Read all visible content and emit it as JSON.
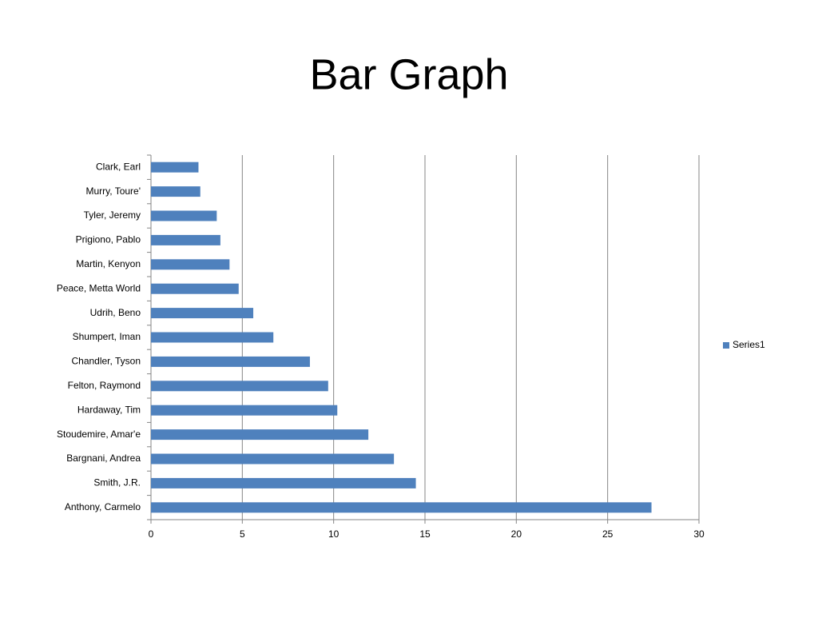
{
  "chart_data": {
    "type": "bar",
    "orientation": "horizontal",
    "title": "Bar Graph",
    "categories": [
      "Clark, Earl",
      "Murry, Toure'",
      "Tyler, Jeremy",
      "Prigiono, Pablo",
      "Martin, Kenyon",
      "Peace, Metta World",
      "Udrih, Beno",
      "Shumpert, Iman",
      "Chandler, Tyson",
      "Felton, Raymond",
      "Hardaway, Tim",
      "Stoudemire, Amar'e",
      "Bargnani, Andrea",
      "Smith, J.R.",
      "Anthony, Carmelo"
    ],
    "series": [
      {
        "name": "Series1",
        "color": "#4f81bd",
        "values": [
          2.6,
          2.7,
          3.6,
          3.8,
          4.3,
          4.8,
          5.6,
          6.7,
          8.7,
          9.7,
          10.2,
          11.9,
          13.3,
          14.5,
          27.4
        ]
      }
    ],
    "xlim": [
      0,
      30
    ],
    "xticks": [
      0,
      5,
      10,
      15,
      20,
      25,
      30
    ],
    "grid": true,
    "legend": "right"
  }
}
